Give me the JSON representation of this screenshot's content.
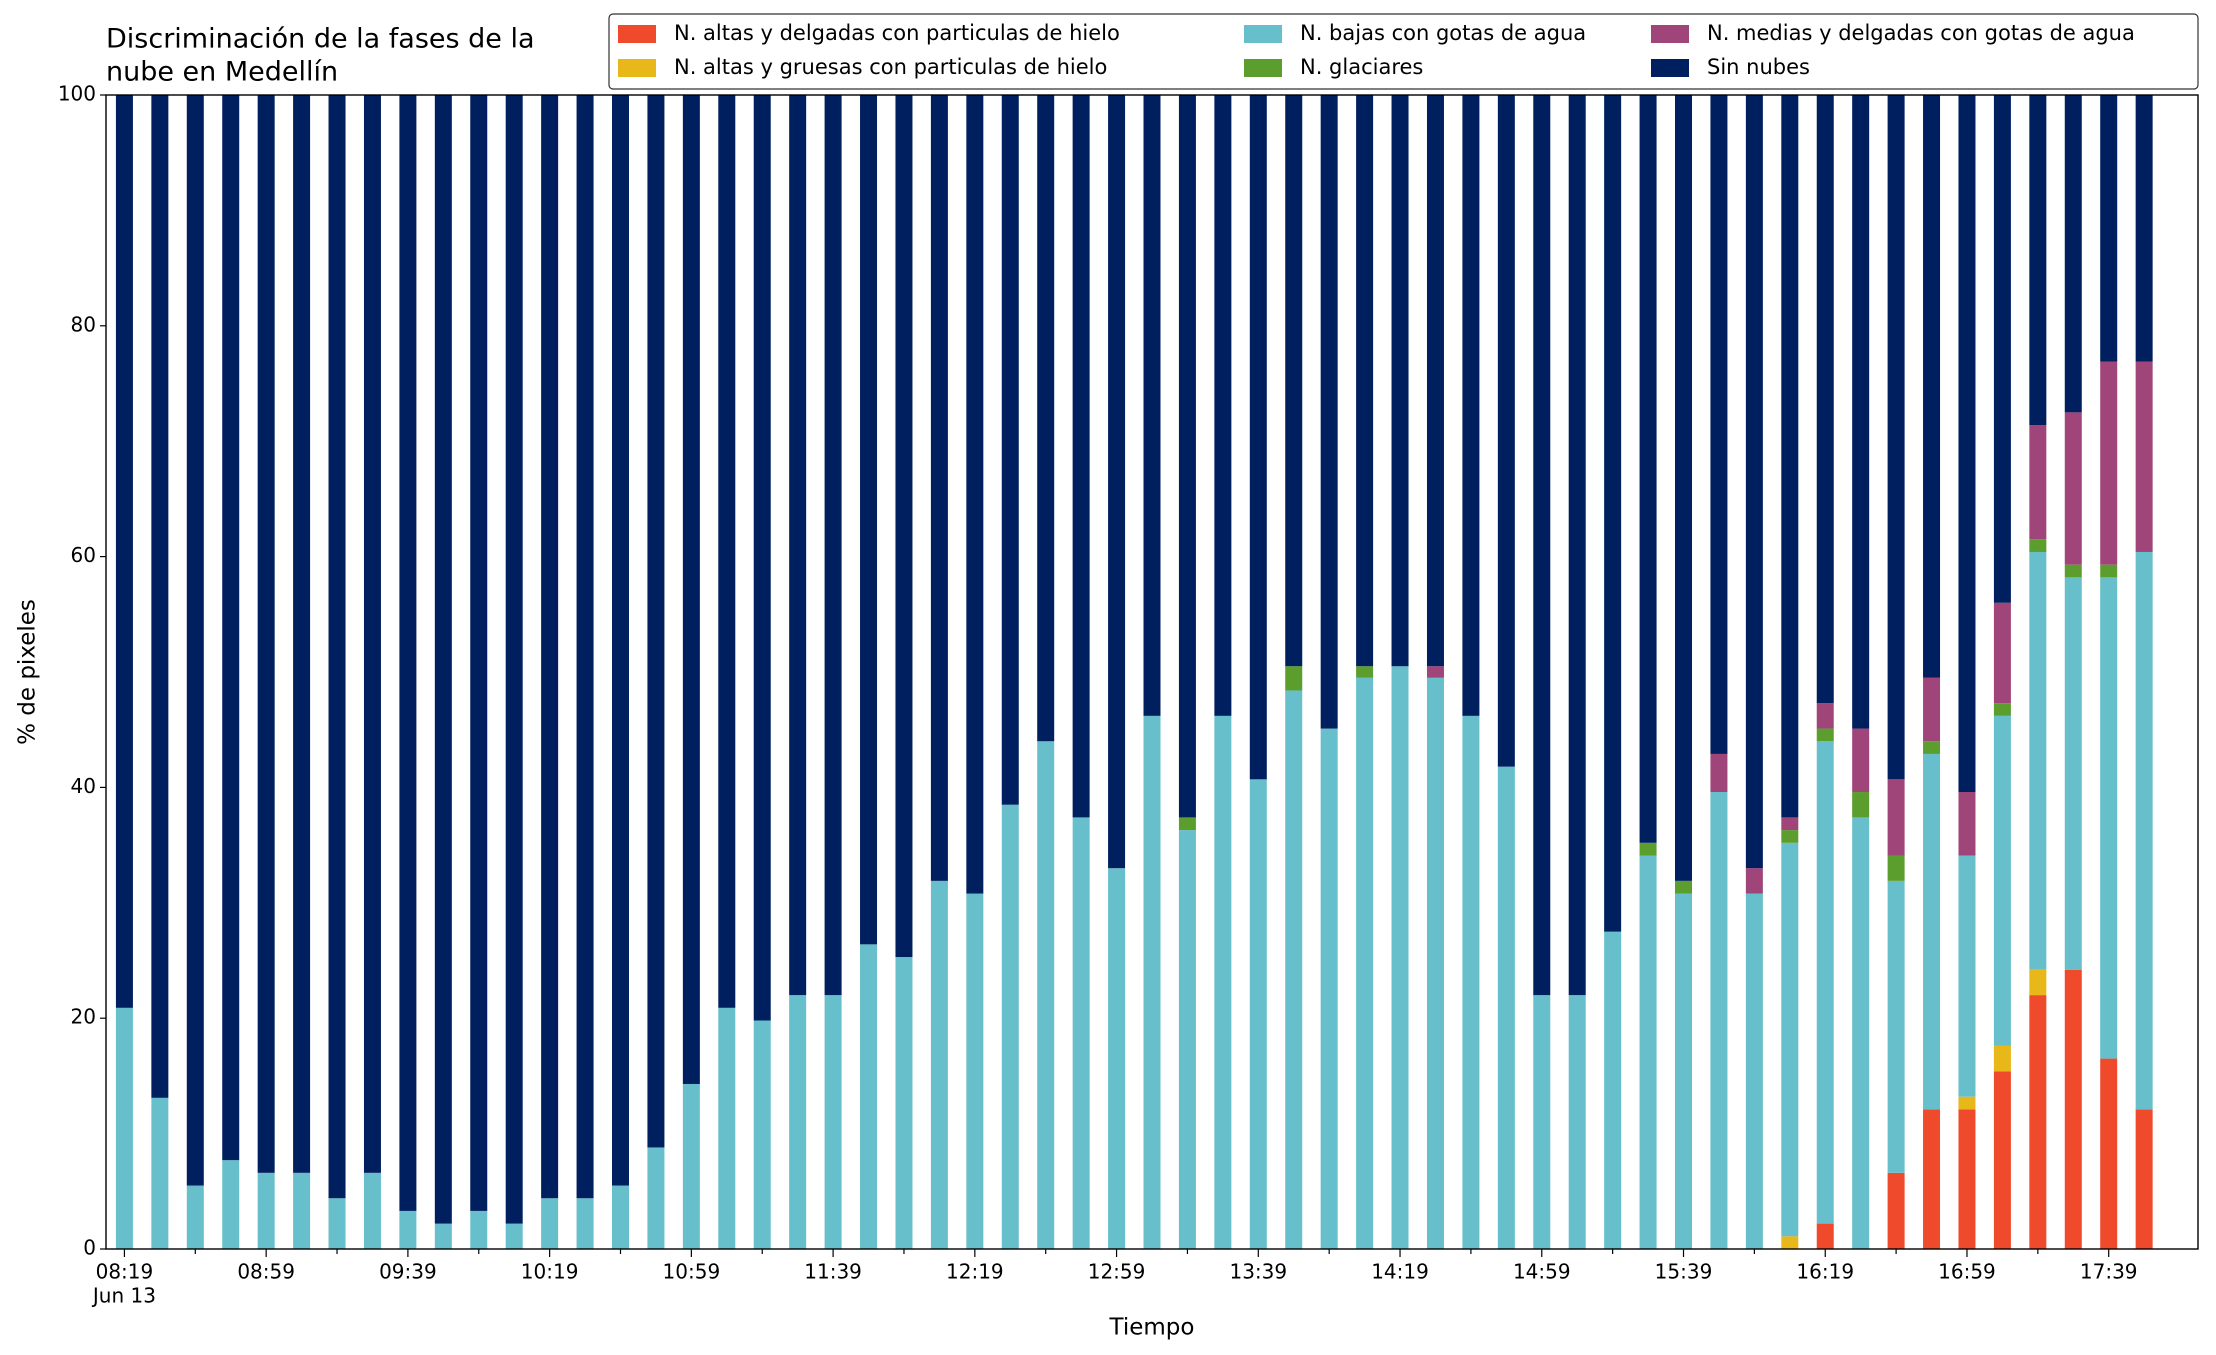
{
  "chart_data": {
    "type": "stacked_bar",
    "title": [
      "Discriminación de la fases de la",
      "nube en Medellín"
    ],
    "xlabel": "Tiempo",
    "ylabel": "% de pixeles",
    "x_date": "Jun 13",
    "categories": [
      "08:19",
      null,
      null,
      null,
      "08:59",
      null,
      null,
      null,
      "09:39",
      null,
      null,
      null,
      "10:19",
      null,
      null,
      null,
      "10:59",
      null,
      null,
      null,
      "11:39",
      null,
      null,
      null,
      "12:19",
      null,
      null,
      null,
      "12:59",
      null,
      null,
      null,
      "13:39",
      null,
      null,
      null,
      "14:19",
      null,
      null,
      null,
      "14:59",
      null,
      null,
      null,
      "15:39",
      null,
      null,
      null,
      "16:19",
      null,
      null,
      null,
      "16:59",
      null,
      null,
      null,
      "17:39",
      null
    ],
    "ylim": [
      0,
      100
    ],
    "yticks": [
      0,
      20,
      40,
      60,
      80,
      100
    ],
    "series": [
      {
        "name": "N. altas y delgadas con particulas de hielo",
        "color": "#f04a2c",
        "values": [
          0,
          0,
          0,
          0,
          0,
          0,
          0,
          0,
          0,
          0,
          0,
          0,
          0,
          0,
          0,
          0,
          0,
          0,
          0,
          0,
          0,
          0,
          0,
          0,
          0,
          0,
          0,
          0,
          0,
          0,
          0,
          0,
          0,
          0,
          0,
          0,
          0,
          0,
          0,
          0,
          0,
          0,
          0,
          0,
          0,
          0,
          0,
          0,
          2.2,
          0,
          6.6,
          12.1,
          12.1,
          15.4,
          22.0,
          24.2,
          16.5,
          12.1
        ]
      },
      {
        "name": "N. altas y gruesas con particulas de hielo",
        "color": "#e8b81a",
        "values": [
          0,
          0,
          0,
          0,
          0,
          0,
          0,
          0,
          0,
          0,
          0,
          0,
          0,
          0,
          0,
          0,
          0,
          0,
          0,
          0,
          0,
          0,
          0,
          0,
          0,
          0,
          0,
          0,
          0,
          0,
          0,
          0,
          0,
          0,
          0,
          0,
          0,
          0,
          0,
          0,
          0,
          0,
          0,
          0,
          0,
          0,
          0,
          1.1,
          0,
          0,
          0,
          0,
          1.1,
          2.2,
          2.2,
          0,
          0,
          0
        ]
      },
      {
        "name": "N. bajas con gotas de agua",
        "color": "#67bfcb",
        "values": [
          20.9,
          13.1,
          5.5,
          7.7,
          6.6,
          6.6,
          4.4,
          6.6,
          3.3,
          2.2,
          3.3,
          2.2,
          4.4,
          4.4,
          5.5,
          8.8,
          14.3,
          20.9,
          19.8,
          22.0,
          22.0,
          26.4,
          25.3,
          31.9,
          30.8,
          38.5,
          44.0,
          37.4,
          33.0,
          46.2,
          36.3,
          46.2,
          40.7,
          48.4,
          45.1,
          49.5,
          50.5,
          49.5,
          46.2,
          41.8,
          22.0,
          22.0,
          27.5,
          34.1,
          30.8,
          39.6,
          30.8,
          34.1,
          41.8,
          37.4,
          25.3,
          30.8,
          20.9,
          28.6,
          36.2,
          34.0,
          41.7,
          48.3
        ]
      },
      {
        "name": "N. glaciares",
        "color": "#5c9e2e",
        "values": [
          0,
          0,
          0,
          0,
          0,
          0,
          0,
          0,
          0,
          0,
          0,
          0,
          0,
          0,
          0,
          0,
          0,
          0,
          0,
          0,
          0,
          0,
          0,
          0,
          0,
          0,
          0,
          0,
          0,
          0,
          1.1,
          0,
          0,
          2.1,
          0,
          1.0,
          0,
          0,
          0,
          0,
          0,
          0,
          0,
          1.1,
          1.1,
          0,
          0,
          1.1,
          1.1,
          2.2,
          2.2,
          1.1,
          0,
          1.1,
          1.1,
          1.1,
          1.1,
          0
        ]
      },
      {
        "name": "N. medias y delgadas con gotas de agua",
        "color": "#a0457a",
        "values": [
          0,
          0,
          0,
          0,
          0,
          0,
          0,
          0,
          0,
          0,
          0,
          0,
          0,
          0,
          0,
          0,
          0,
          0,
          0,
          0,
          0,
          0,
          0,
          0,
          0,
          0,
          0,
          0,
          0,
          0,
          0,
          0,
          0,
          0,
          0,
          0,
          0,
          1.0,
          0,
          0,
          0,
          0,
          0,
          0,
          0,
          3.3,
          2.2,
          1.1,
          2.2,
          5.5,
          6.6,
          5.5,
          5.5,
          8.7,
          9.9,
          13.2,
          17.6,
          16.5
        ]
      },
      {
        "name": "Sin nubes",
        "color": "#001f5f",
        "values": [
          79.1,
          86.9,
          94.5,
          92.3,
          93.4,
          93.4,
          95.6,
          93.4,
          96.7,
          97.8,
          96.7,
          97.8,
          95.6,
          95.6,
          94.5,
          91.2,
          85.7,
          79.1,
          80.2,
          78.0,
          78.0,
          73.6,
          74.7,
          68.1,
          69.2,
          61.5,
          56.0,
          62.6,
          67.0,
          53.8,
          62.6,
          53.8,
          59.3,
          49.5,
          54.9,
          49.5,
          49.5,
          49.5,
          53.8,
          58.2,
          78.0,
          78.0,
          72.5,
          64.8,
          68.1,
          57.1,
          67.0,
          62.6,
          52.7,
          54.9,
          59.3,
          50.5,
          60.4,
          44.0,
          28.6,
          27.5,
          23.1,
          23.1
        ]
      }
    ],
    "legend": "upper right"
  }
}
